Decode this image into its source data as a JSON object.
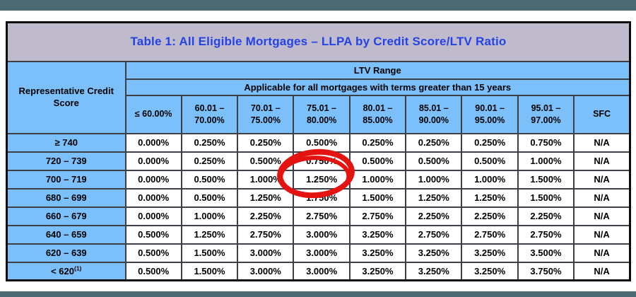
{
  "page": {
    "top_bar_color": "#4c6a72",
    "bottom_bar_color": "#4c6a72",
    "background": "#ffffff"
  },
  "table": {
    "title": "Table 1: All Eligible Mortgages – LLPA by Credit Score/LTV Ratio",
    "title_color": "#2443e6",
    "title_bg": "#c0bacd",
    "header_bg": "#7cc0fb",
    "corner_header": "Representative Credit Score",
    "ltv_range_label": "LTV Range",
    "applicability_note": "Applicable for all mortgages with terms greater than 15 years",
    "columns": [
      "≤ 60.00%",
      "60.01 – 70.00%",
      "70.01 – 75.00%",
      "75.01 – 80.00%",
      "80.01 – 85.00%",
      "85.01 – 90.00%",
      "90.01 – 95.00%",
      "95.01 – 97.00%",
      "SFC"
    ],
    "rows": [
      {
        "score": "≥ 740",
        "values": [
          "0.000%",
          "0.250%",
          "0.250%",
          "0.500%",
          "0.250%",
          "0.250%",
          "0.250%",
          "0.750%",
          "N/A"
        ]
      },
      {
        "score": "720 – 739",
        "values": [
          "0.000%",
          "0.250%",
          "0.500%",
          "0.750%",
          "0.500%",
          "0.500%",
          "0.500%",
          "1.000%",
          "N/A"
        ]
      },
      {
        "score": "700 – 719",
        "values": [
          "0.000%",
          "0.500%",
          "1.000%",
          "1.250%",
          "1.000%",
          "1.000%",
          "1.000%",
          "1.500%",
          "N/A"
        ]
      },
      {
        "score": "680 – 699",
        "values": [
          "0.000%",
          "0.500%",
          "1.250%",
          "1.750%",
          "1.500%",
          "1.250%",
          "1.250%",
          "1.500%",
          "N/A"
        ]
      },
      {
        "score": "660 – 679",
        "values": [
          "0.000%",
          "1.000%",
          "2.250%",
          "2.750%",
          "2.750%",
          "2.250%",
          "2.250%",
          "2.250%",
          "N/A"
        ]
      },
      {
        "score": "640 – 659",
        "values": [
          "0.500%",
          "1.250%",
          "2.750%",
          "3.000%",
          "3.250%",
          "2.750%",
          "2.750%",
          "2.750%",
          "N/A"
        ]
      },
      {
        "score": "620 – 639",
        "values": [
          "0.500%",
          "1.500%",
          "3.000%",
          "3.000%",
          "3.250%",
          "3.250%",
          "3.250%",
          "3.500%",
          "N/A"
        ]
      },
      {
        "score": "< 620",
        "score_sup": "(1)",
        "values": [
          "0.500%",
          "1.500%",
          "3.000%",
          "3.000%",
          "3.250%",
          "3.250%",
          "3.250%",
          "3.750%",
          "N/A"
        ]
      }
    ]
  },
  "annotation": {
    "shape": "hand-drawn-ellipse",
    "color": "#e41310",
    "circled_value": "0.750%",
    "circled_row": "720 – 739",
    "circled_column": "75.01 – 80.00%"
  }
}
